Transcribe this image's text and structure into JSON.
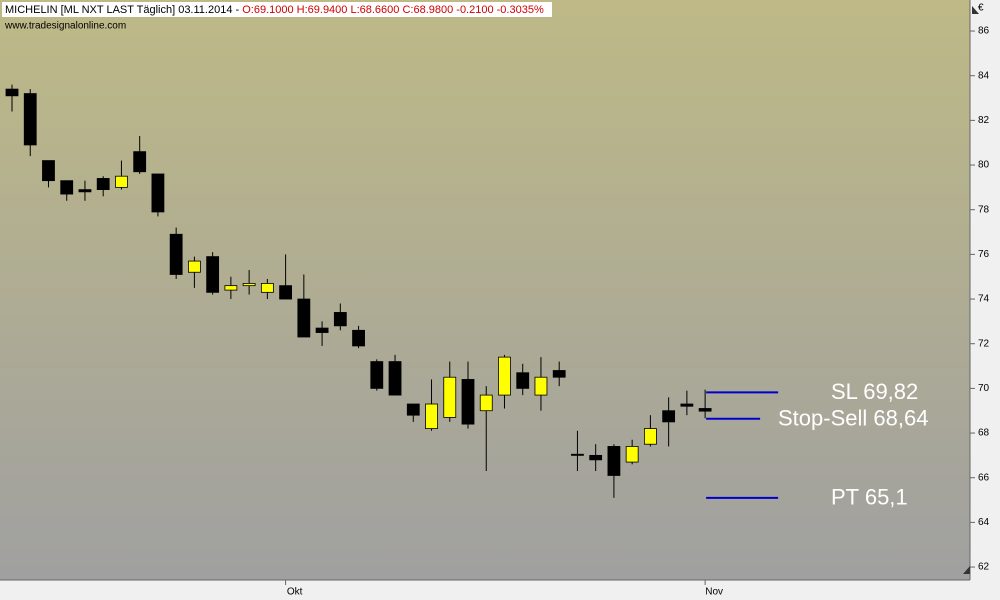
{
  "chart_data": {
    "type": "candlestick",
    "title": "MICHELIN [ML NXT LAST Täglich] 03.11.2014 - ",
    "subtitle": "O:69.1000 H:69.9400 L:68.6600 C:68.9800 -0.2100 -0.3035%",
    "source": "www.tradesignalonline.com",
    "currency": "€",
    "categories": [
      null,
      null,
      null,
      null,
      null,
      null,
      null,
      null,
      null,
      null,
      null,
      null,
      null,
      null,
      null,
      "Okt",
      null,
      null,
      null,
      null,
      null,
      null,
      null,
      null,
      null,
      null,
      null,
      null,
      null,
      null,
      null,
      null,
      null,
      null,
      null,
      null,
      null,
      null,
      "Nov"
    ],
    "open": [
      83.4,
      83.2,
      80.2,
      79.3,
      78.9,
      79.4,
      79.0,
      80.6,
      79.6,
      76.9,
      75.2,
      75.9,
      74.4,
      74.6,
      74.3,
      74.6,
      74.0,
      72.7,
      73.4,
      72.6,
      71.2,
      71.2,
      69.3,
      68.2,
      68.7,
      70.4,
      69.0,
      69.7,
      70.7,
      69.7,
      70.8,
      67.05,
      67.0,
      67.4,
      66.7,
      67.5,
      69.0,
      69.3,
      69.1
    ],
    "high": [
      83.6,
      83.4,
      80.2,
      79.3,
      79.3,
      79.5,
      80.2,
      81.3,
      79.6,
      77.2,
      75.9,
      76.1,
      75.0,
      75.3,
      74.9,
      76.0,
      75.1,
      73.0,
      73.8,
      72.8,
      71.3,
      71.5,
      69.3,
      70.4,
      71.2,
      71.2,
      70.1,
      71.5,
      71.1,
      71.4,
      71.2,
      68.1,
      67.5,
      67.5,
      67.7,
      68.8,
      69.6,
      69.9,
      69.94
    ],
    "low": [
      82.4,
      80.4,
      79.0,
      78.4,
      78.4,
      78.6,
      78.9,
      79.6,
      77.7,
      74.9,
      74.5,
      74.2,
      74.0,
      74.2,
      74.0,
      74.0,
      72.3,
      71.9,
      72.6,
      71.8,
      69.9,
      69.7,
      68.5,
      68.1,
      68.5,
      68.2,
      66.3,
      69.1,
      69.7,
      69.0,
      70.1,
      66.3,
      66.3,
      65.1,
      66.6,
      67.4,
      67.4,
      68.8,
      68.66
    ],
    "close": [
      83.1,
      80.9,
      79.3,
      78.7,
      78.8,
      78.9,
      79.5,
      79.7,
      77.9,
      75.1,
      75.7,
      74.3,
      74.6,
      74.7,
      74.7,
      74.0,
      72.3,
      72.5,
      72.8,
      71.9,
      70.0,
      69.7,
      68.8,
      69.3,
      70.5,
      68.4,
      69.7,
      71.4,
      70.0,
      70.5,
      70.5,
      67.0,
      66.8,
      66.1,
      67.4,
      68.2,
      68.5,
      69.2,
      68.98
    ],
    "up_color": "#ffff00",
    "down_color": "#000000",
    "levels": [
      {
        "value": 69.82,
        "label": "SL 69,82"
      },
      {
        "value": 68.64,
        "label": "Stop-Sell 68,64"
      },
      {
        "value": 65.1,
        "label": "PT 65,1"
      }
    ],
    "level_color": "#0000cc",
    "ylim": [
      61.42,
      87.39
    ],
    "yticks": [
      62,
      64,
      66,
      68,
      70,
      72,
      74,
      76,
      78,
      80,
      82,
      84,
      86
    ]
  }
}
